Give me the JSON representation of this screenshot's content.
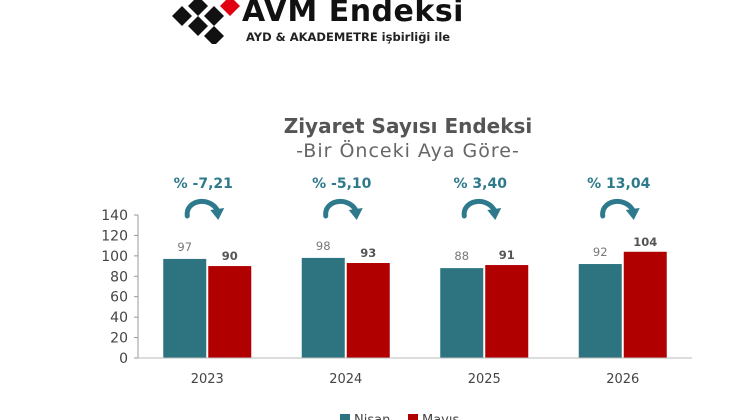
{
  "logo": {
    "brand": "AVM Endeksi",
    "tagline": "AYD & AKADEMETRE işbirliği ile"
  },
  "chart_data": {
    "type": "bar",
    "title": "Ziyaret Sayısı Endeksi",
    "subtitle": "-Bir Önceki Aya Göre-",
    "categories": [
      "2023",
      "2024",
      "2025",
      "2026"
    ],
    "series": [
      {
        "name": "Nisan",
        "values": [
          97,
          98,
          88,
          92
        ],
        "color": "#2e7480"
      },
      {
        "name": "Mayıs",
        "values": [
          90,
          93,
          91,
          104
        ],
        "color": "#b00000"
      }
    ],
    "annotations": [
      "% -7,21",
      "% -5,10",
      "% 3,40",
      "% 13,04"
    ],
    "annotation_color": "#2e7a8c",
    "ylim": [
      0,
      140
    ],
    "yticks": [
      0,
      20,
      40,
      60,
      80,
      100,
      120,
      140
    ],
    "grid": false,
    "legend": "bottom",
    "xlabel": "",
    "ylabel": ""
  }
}
